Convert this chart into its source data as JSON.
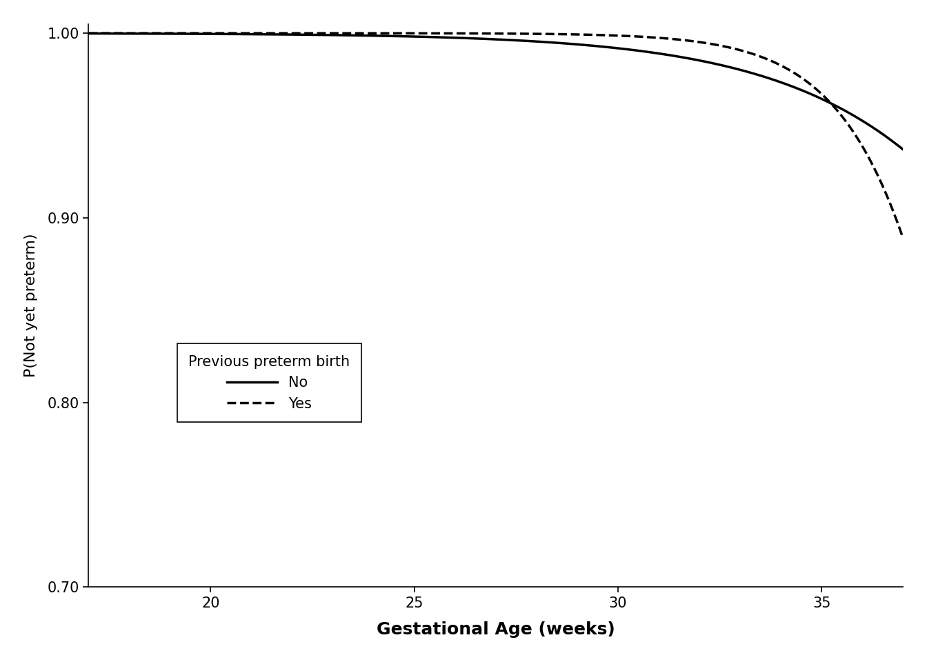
{
  "title": "",
  "xlabel": "Gestational Age (weeks)",
  "ylabel": "P(Not yet preterm)",
  "xlim": [
    17.0,
    37.0
  ],
  "ylim": [
    0.7,
    1.005
  ],
  "xticks": [
    20,
    25,
    30,
    35
  ],
  "yticks": [
    0.7,
    0.8,
    0.9,
    1.0
  ],
  "legend_title": "Previous preterm birth",
  "legend_labels": [
    "No",
    "Yes"
  ],
  "background_color": "#ffffff",
  "xlabel_fontsize": 18,
  "ylabel_fontsize": 16,
  "tick_fontsize": 15,
  "legend_fontsize": 15,
  "line_width": 2.5,
  "no_midpoint": 46.0,
  "no_slope": 0.3,
  "yes_midpoint": 40.2,
  "yes_slope": 0.65
}
